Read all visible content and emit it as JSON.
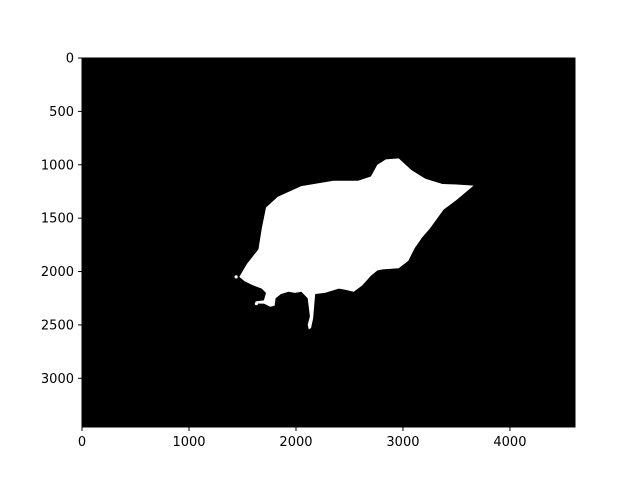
{
  "chart_data": {
    "type": "heatmap",
    "description_kind": "binary-mask-image",
    "title": "",
    "xlabel": "",
    "ylabel": "",
    "image_width": 4608,
    "image_height": 3456,
    "xlim": [
      0,
      4608
    ],
    "ylim": [
      3456,
      0
    ],
    "x_ticks": [
      0,
      1000,
      2000,
      3000,
      4000
    ],
    "x_tick_labels": [
      "0",
      "1000",
      "2000",
      "3000",
      "4000"
    ],
    "y_ticks": [
      0,
      500,
      1000,
      1500,
      2000,
      2500,
      3000
    ],
    "y_tick_labels": [
      "0",
      "500",
      "1000",
      "1500",
      "2000",
      "2500",
      "3000"
    ],
    "grid": false,
    "colors": {
      "background": "#000000",
      "foreground": "#ffffff",
      "axes": "#000000"
    },
    "mask_outline": [
      [
        1470,
        2050
      ],
      [
        1540,
        1930
      ],
      [
        1650,
        1790
      ],
      [
        1680,
        1600
      ],
      [
        1720,
        1400
      ],
      [
        1830,
        1300
      ],
      [
        2050,
        1200
      ],
      [
        2350,
        1150
      ],
      [
        2580,
        1150
      ],
      [
        2700,
        1110
      ],
      [
        2760,
        1000
      ],
      [
        2840,
        950
      ],
      [
        2960,
        940
      ],
      [
        3080,
        1050
      ],
      [
        3210,
        1130
      ],
      [
        3370,
        1180
      ],
      [
        3500,
        1185
      ],
      [
        3660,
        1195
      ],
      [
        3500,
        1330
      ],
      [
        3380,
        1420
      ],
      [
        3250,
        1600
      ],
      [
        3180,
        1680
      ],
      [
        3110,
        1780
      ],
      [
        3050,
        1900
      ],
      [
        2960,
        1970
      ],
      [
        2810,
        1980
      ],
      [
        2760,
        1990
      ],
      [
        2700,
        2040
      ],
      [
        2620,
        2130
      ],
      [
        2540,
        2190
      ],
      [
        2460,
        2170
      ],
      [
        2400,
        2160
      ],
      [
        2270,
        2200
      ],
      [
        2180,
        2210
      ],
      [
        2170,
        2320
      ],
      [
        2160,
        2440
      ],
      [
        2140,
        2530
      ],
      [
        2120,
        2540
      ],
      [
        2110,
        2500
      ],
      [
        2130,
        2420
      ],
      [
        2110,
        2250
      ],
      [
        2050,
        2190
      ],
      [
        1990,
        2200
      ],
      [
        1930,
        2190
      ],
      [
        1860,
        2210
      ],
      [
        1810,
        2250
      ],
      [
        1800,
        2320
      ],
      [
        1760,
        2330
      ],
      [
        1700,
        2300
      ],
      [
        1650,
        2300
      ],
      [
        1620,
        2280
      ],
      [
        1700,
        2270
      ],
      [
        1720,
        2200
      ],
      [
        1680,
        2160
      ],
      [
        1600,
        2130
      ],
      [
        1520,
        2090
      ]
    ],
    "mask_specks": [
      [
        1440,
        2050
      ],
      [
        1630,
        2300
      ]
    ]
  }
}
